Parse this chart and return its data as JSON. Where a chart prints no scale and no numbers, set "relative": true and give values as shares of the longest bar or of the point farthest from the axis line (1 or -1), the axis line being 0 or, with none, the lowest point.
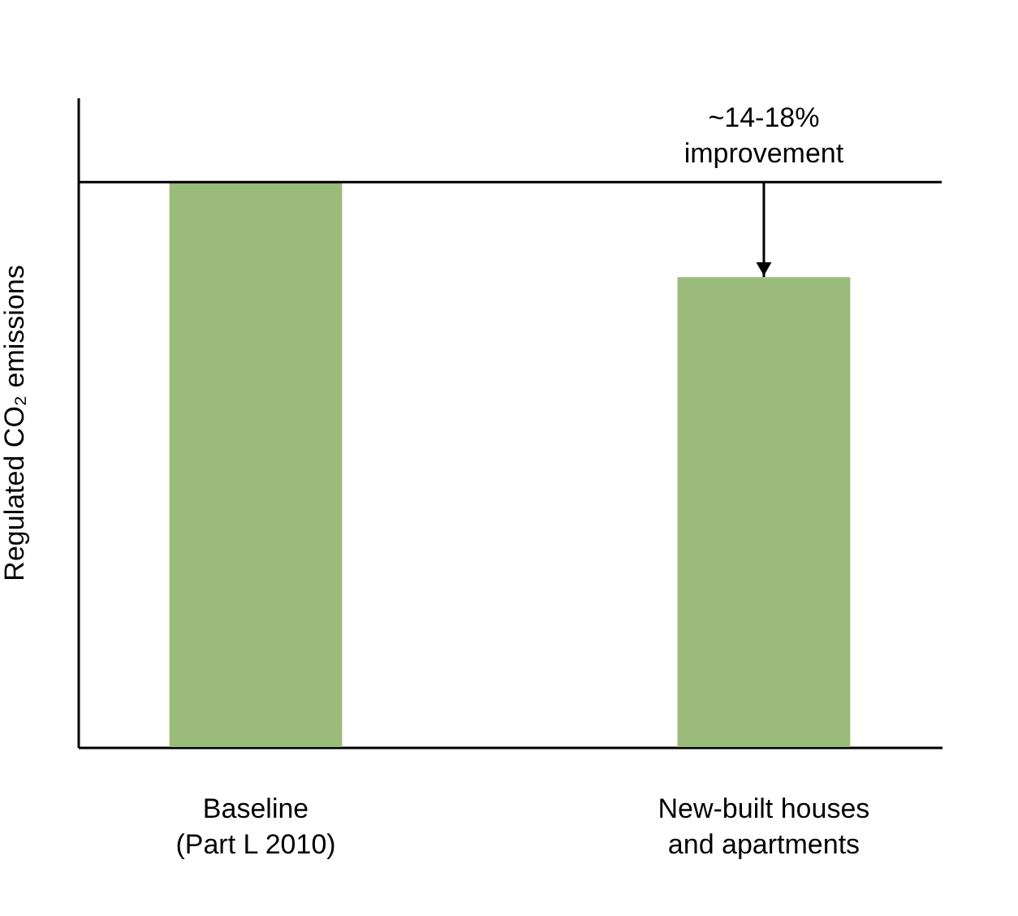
{
  "chart_data": {
    "type": "bar",
    "relative": true,
    "ylabel": "Regulated CO₂ emissions",
    "categories": [
      "Baseline\n(Part L 2010)",
      "New-built houses\nand apartments"
    ],
    "values": [
      1,
      0.832
    ],
    "color": "#9bbb7b",
    "grid": false,
    "ref_lines": [
      {
        "axis": "y",
        "value": 1,
        "color": "#000000"
      }
    ],
    "annotations": [
      {
        "text": "~14-18%\nimprovement",
        "x": "New-built houses\nand apartments",
        "y": 1
      }
    ]
  }
}
